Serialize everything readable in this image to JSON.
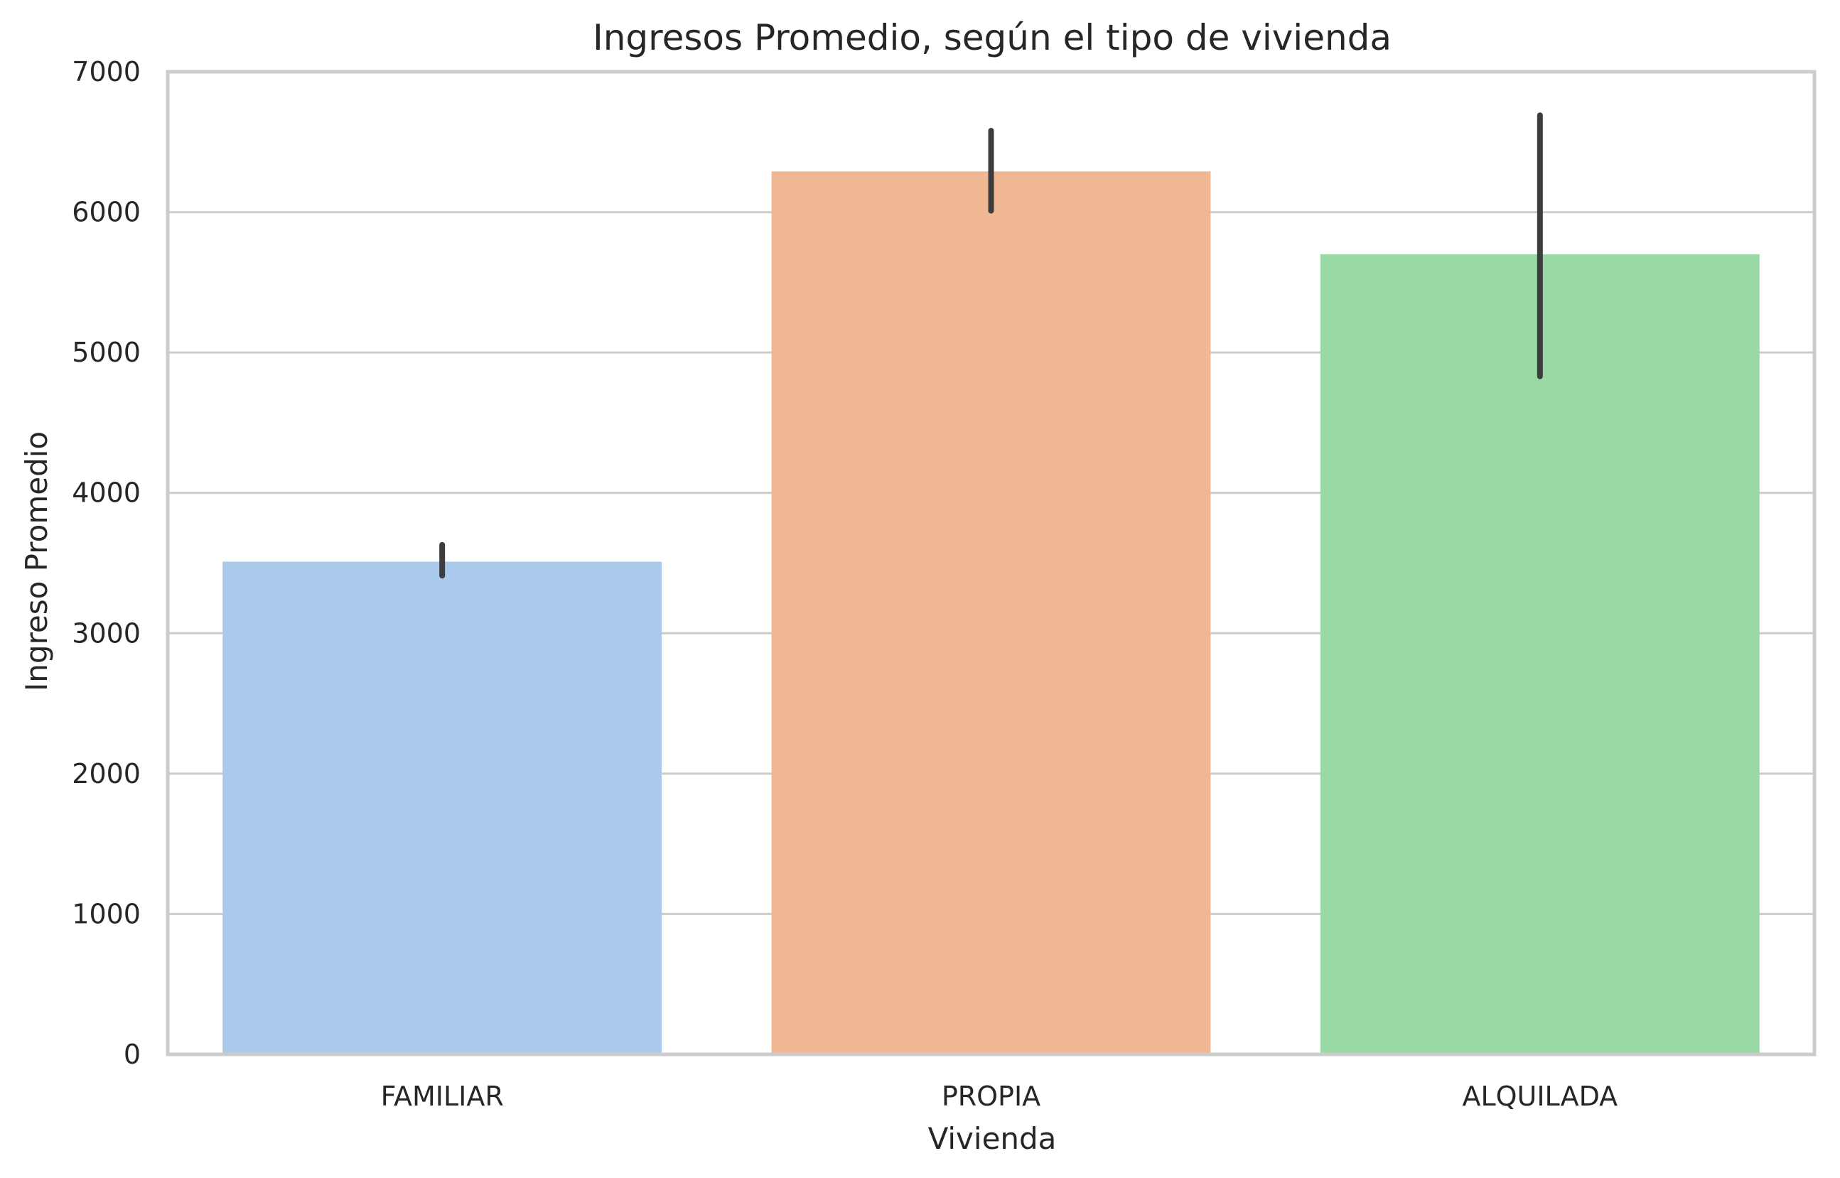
{
  "chart_data": {
    "type": "bar",
    "title": "Ingresos Promedio, según el tipo de vivienda",
    "xlabel": "Vivienda",
    "ylabel": "Ingreso Promedio",
    "categories": [
      "FAMILIAR",
      "PROPIA",
      "ALQUILADA"
    ],
    "values": [
      3510,
      6290,
      5700
    ],
    "error_low": [
      3410,
      6010,
      4830
    ],
    "error_high": [
      3630,
      6580,
      6690
    ],
    "colors": [
      "#abc9ea",
      "#efb792",
      "#98d9a6"
    ],
    "ylim": [
      0,
      7000
    ],
    "yticks": [
      0,
      1000,
      2000,
      3000,
      4000,
      5000,
      6000,
      7000
    ],
    "grid": "horizontal",
    "legend": "none",
    "style": {
      "grid_color": "#cccccc",
      "spine_color": "#cccccc",
      "errorbar_color": "#3d3d3d",
      "text_color": "#262626"
    }
  }
}
